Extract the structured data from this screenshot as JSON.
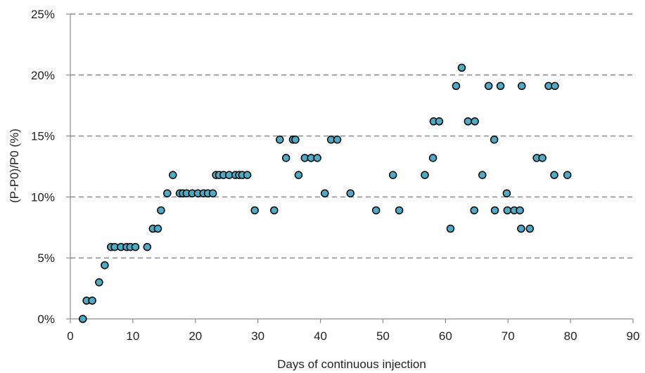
{
  "chart_data": {
    "type": "scatter",
    "title": "",
    "xlabel": "Days of continuous injection",
    "ylabel": "(P-P0)/P0 (%)",
    "xlim": [
      0,
      90
    ],
    "ylim": [
      0,
      25
    ],
    "x_ticks": [
      0,
      10,
      20,
      30,
      40,
      50,
      60,
      70,
      80,
      90
    ],
    "y_ticks": [
      0,
      5,
      10,
      15,
      20,
      25
    ],
    "y_tick_labels": [
      "0%",
      "5%",
      "10%",
      "15%",
      "20%",
      "25%"
    ],
    "x_tick_labels": [
      "0",
      "10",
      "20",
      "30",
      "40",
      "50",
      "60",
      "70",
      "80",
      "90"
    ],
    "grid": "horizontal dashed",
    "legend": "none",
    "colors": {
      "marker_fill": "#4BACC6",
      "marker_edge": "#000000",
      "grid": "#8C8C8C",
      "axis": "#8C8C8C"
    },
    "series": [
      {
        "x": [
          2.0,
          2.6,
          3.5,
          4.6,
          5.5,
          6.5,
          7.1,
          8.1,
          9.0,
          9.6,
          10.4,
          12.3,
          13.2,
          14.0,
          14.5,
          15.5,
          16.4,
          17.5,
          18.0,
          18.6,
          19.5,
          20.4,
          21.3,
          22.0,
          22.8,
          23.3,
          23.8,
          24.5,
          25.4,
          26.4,
          27.0,
          27.5,
          28.3,
          29.5,
          32.6,
          33.5,
          34.5,
          35.6,
          36.0,
          36.5,
          37.5,
          38.5,
          39.5,
          40.7,
          41.7,
          42.7,
          44.8,
          48.9,
          51.6,
          52.6,
          56.7,
          58.0,
          58.1,
          59.0,
          60.8,
          61.7,
          62.6,
          63.6,
          64.6,
          64.7,
          65.9,
          66.9,
          67.8,
          67.9,
          68.8,
          69.8,
          69.9,
          71.0,
          71.9,
          72.1,
          72.2,
          73.5,
          74.6,
          75.5,
          76.5,
          77.4,
          77.5,
          79.5
        ],
        "y": [
          0,
          1.5,
          1.5,
          3.0,
          4.4,
          5.9,
          5.9,
          5.9,
          5.9,
          5.9,
          5.9,
          5.9,
          7.4,
          7.4,
          8.9,
          10.3,
          11.8,
          10.3,
          10.3,
          10.3,
          10.3,
          10.3,
          10.3,
          10.3,
          10.3,
          11.8,
          11.8,
          11.8,
          11.8,
          11.8,
          11.8,
          11.8,
          11.8,
          8.9,
          8.9,
          14.7,
          13.2,
          14.7,
          14.7,
          11.8,
          13.2,
          13.2,
          13.2,
          10.3,
          14.7,
          14.7,
          10.3,
          8.9,
          11.8,
          8.9,
          11.8,
          13.2,
          16.2,
          16.2,
          7.4,
          19.1,
          20.6,
          16.2,
          8.9,
          16.2,
          11.8,
          19.1,
          14.7,
          8.9,
          19.1,
          10.3,
          8.9,
          8.9,
          8.9,
          7.4,
          19.1,
          7.4,
          13.2,
          13.2,
          19.1,
          11.8,
          19.1,
          11.8
        ]
      }
    ]
  }
}
